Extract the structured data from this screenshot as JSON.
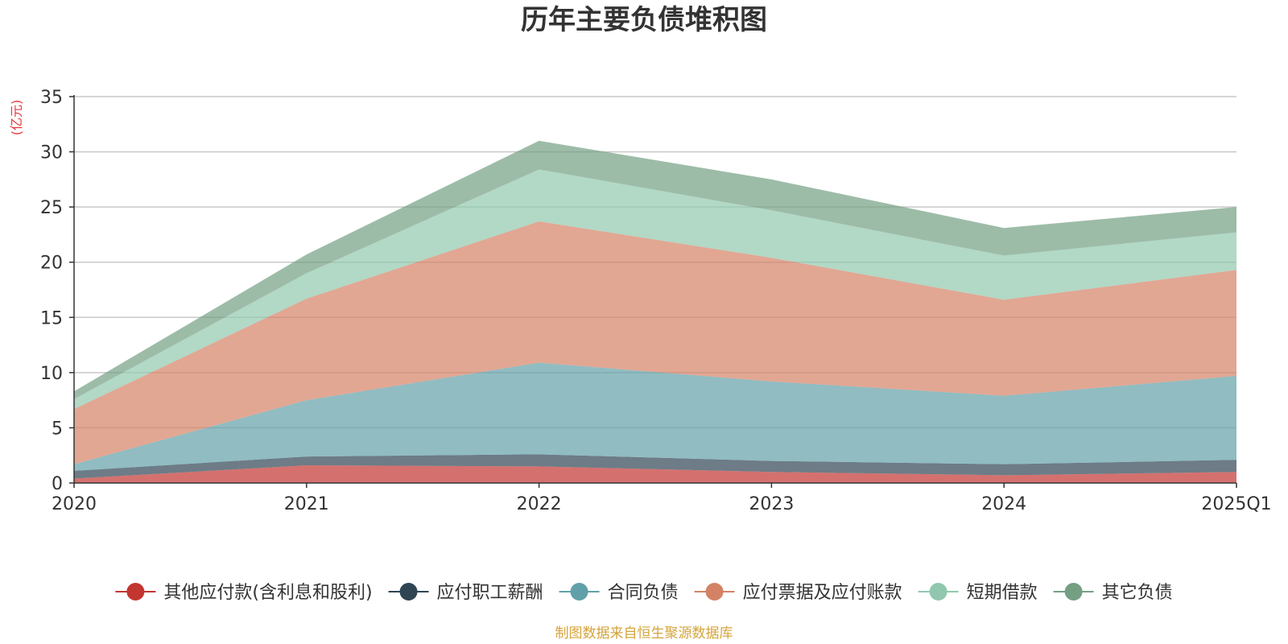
{
  "chart_data": {
    "type": "area",
    "stacked": true,
    "title": "历年主要负债堆积图",
    "unit_label": "(亿元)",
    "categories": [
      "2020",
      "2021",
      "2022",
      "2023",
      "2024",
      "2025Q1"
    ],
    "ylim": [
      0,
      35
    ],
    "yticks": [
      0,
      5,
      10,
      15,
      20,
      25,
      30,
      35
    ],
    "grid": true,
    "legend_position": "bottom",
    "series": [
      {
        "name": "其他应付款(含利息和股利)",
        "color": "#c23531",
        "values": [
          0.4,
          1.6,
          1.5,
          1.0,
          0.7,
          1.0
        ]
      },
      {
        "name": "应付职工薪酬",
        "color": "#2f4554",
        "values": [
          0.7,
          0.8,
          1.1,
          1.0,
          1.0,
          1.1
        ]
      },
      {
        "name": "合同负债",
        "color": "#61a0a8",
        "values": [
          0.6,
          5.1,
          8.3,
          7.2,
          6.2,
          7.6
        ]
      },
      {
        "name": "应付票据及应付账款",
        "color": "#d48265",
        "values": [
          5.0,
          9.2,
          12.8,
          11.2,
          8.7,
          9.6
        ]
      },
      {
        "name": "短期借款",
        "color": "#91c7ae",
        "values": [
          0.9,
          2.3,
          4.7,
          4.3,
          4.0,
          3.4
        ]
      },
      {
        "name": "其它负债",
        "color": "#749f83",
        "values": [
          0.7,
          1.7,
          2.6,
          2.8,
          2.5,
          2.3
        ]
      }
    ],
    "source_note": "制图数据来自恒生聚源数据库"
  }
}
